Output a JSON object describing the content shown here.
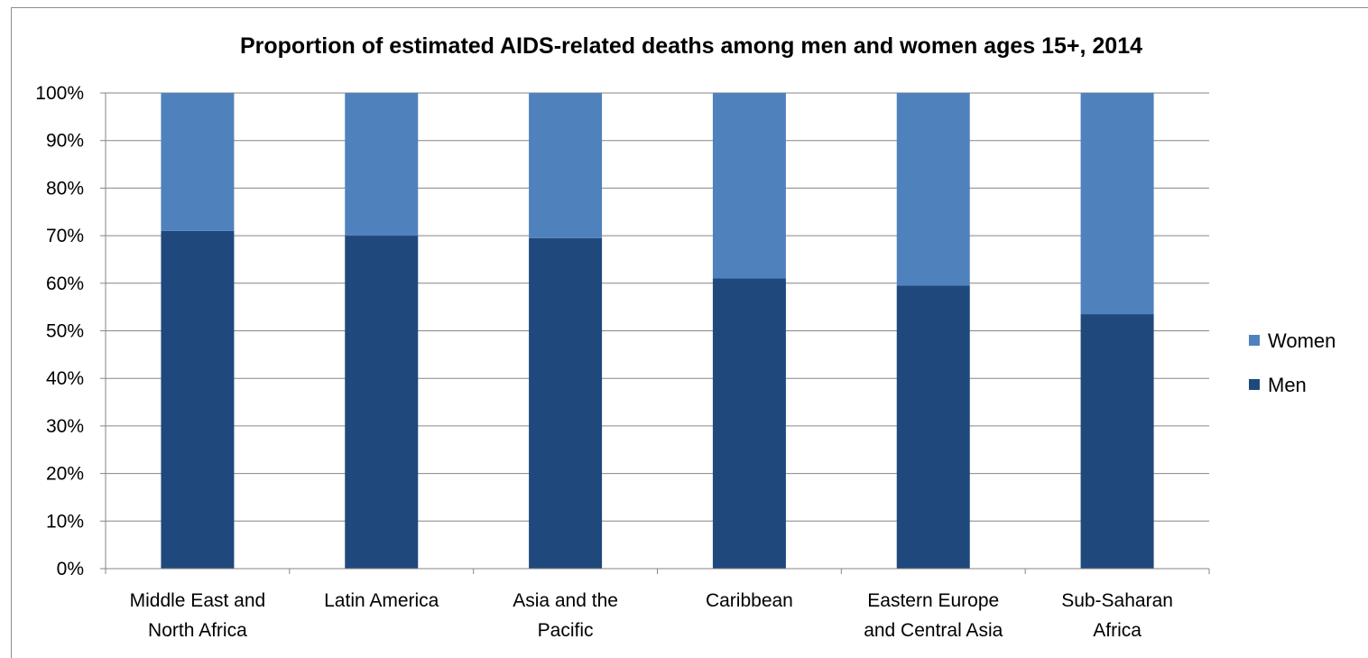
{
  "chart_data": {
    "type": "bar",
    "stacked": true,
    "title": "Proportion of estimated AIDS-related deaths among men and women ages 15+, 2014",
    "xlabel": "",
    "ylabel": "",
    "ylim": [
      0,
      100
    ],
    "y_ticks": [
      "0%",
      "10%",
      "20%",
      "30%",
      "40%",
      "50%",
      "60%",
      "70%",
      "80%",
      "90%",
      "100%"
    ],
    "grid": true,
    "legend_position": "right",
    "categories": [
      [
        "Middle East and",
        "North Africa"
      ],
      [
        "Latin America"
      ],
      [
        "Asia and the",
        "Pacific"
      ],
      [
        "Caribbean"
      ],
      [
        "Eastern Europe",
        "and Central Asia"
      ],
      [
        "Sub-Saharan",
        "Africa"
      ]
    ],
    "series": [
      {
        "name": "Men",
        "color": "#1f497d",
        "values": [
          71,
          70,
          69.5,
          61,
          59.5,
          53.5
        ]
      },
      {
        "name": "Women",
        "color": "#4f81bd",
        "values": [
          29,
          30,
          30.5,
          39,
          40.5,
          46.5
        ]
      }
    ]
  }
}
